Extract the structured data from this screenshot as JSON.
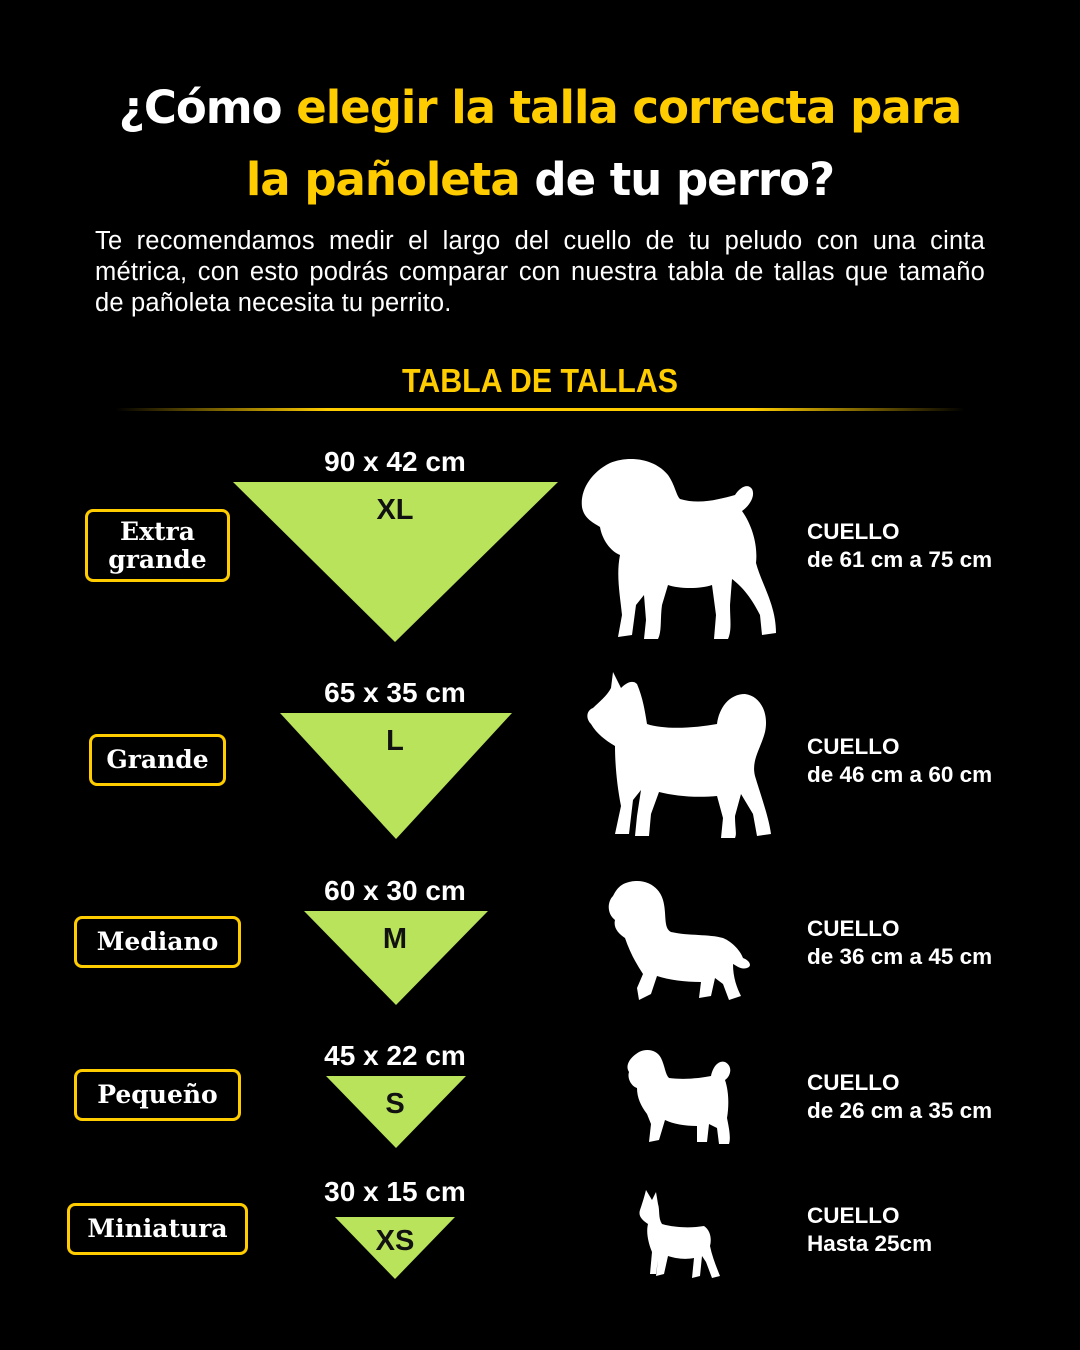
{
  "header": {
    "title_part1": "¿Cómo ",
    "title_part2": "elegir la talla correcta para",
    "title_part3": "la pañoleta",
    "title_part4": " de tu perro?"
  },
  "intro": "Te recomendamos medir el largo del cuello de tu peludo con una cinta métrica, con esto podrás comparar con nuestra tabla de tallas que tamaño de pañoleta necesita tu perrito.",
  "table_title": "TABLA DE TALLAS",
  "colors": {
    "accent": "#ffcc00",
    "bandana": "#b9e35a",
    "background": "#000000"
  },
  "sizes": [
    {
      "label_line1": "Extra",
      "label_line2": "grande",
      "dims": "90 x 42 cm",
      "code": "XL",
      "neck_title": "CUELLO",
      "neck_range": "de 61 cm a 75 cm",
      "dog_icon": "mastiff-silhouette-icon"
    },
    {
      "label_line1": "Grande",
      "label_line2": "",
      "dims": "65 x 35 cm",
      "code": "L",
      "neck_title": "CUELLO",
      "neck_range": "de 46 cm a 60 cm",
      "dog_icon": "husky-silhouette-icon"
    },
    {
      "label_line1": "Mediano",
      "label_line2": "",
      "dims": "60 x 30 cm",
      "code": "M",
      "neck_title": "CUELLO",
      "neck_range": "de 36 cm a 45 cm",
      "dog_icon": "spaniel-silhouette-icon"
    },
    {
      "label_line1": "Pequeño",
      "label_line2": "",
      "dims": "45 x 22  cm",
      "code": "S",
      "neck_title": "CUELLO",
      "neck_range": "de 26 cm a 35 cm",
      "dog_icon": "schnauzer-silhouette-icon"
    },
    {
      "label_line1": "Miniatura",
      "label_line2": "",
      "dims": "30 x 15  cm",
      "code": "XS",
      "neck_title": "CUELLO",
      "neck_range": "Hasta 25cm",
      "dog_icon": "pinscher-silhouette-icon"
    }
  ]
}
